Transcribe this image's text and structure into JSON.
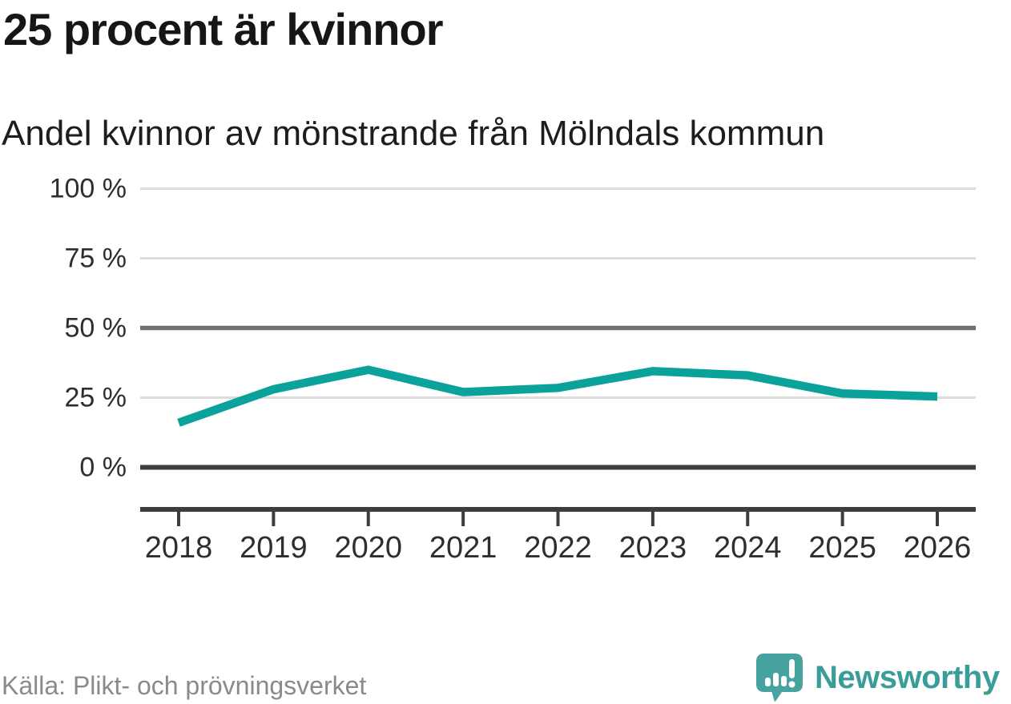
{
  "header": {
    "title": "25 procent är kvinnor",
    "subtitle": "Andel kvinnor av mönstrande från Mölndals kommun"
  },
  "chart_data": {
    "type": "line",
    "title": "25 procent är kvinnor",
    "subtitle": "Andel kvinnor av mönstrande från Mölndals kommun",
    "x": [
      2018,
      2019,
      2020,
      2021,
      2022,
      2023,
      2024,
      2025,
      2026
    ],
    "series": [
      {
        "name": "Andel kvinnor av mönstrande",
        "values": [
          16,
          28,
          35,
          27,
          28.5,
          34.5,
          33,
          26.5,
          25.4
        ]
      }
    ],
    "unit": "%",
    "ylim": [
      0,
      100
    ],
    "yticks": [
      0,
      25,
      50,
      75,
      100
    ],
    "ytick_labels": [
      "0 %",
      "25 %",
      "50 %",
      "75 %",
      "100 %"
    ],
    "emphasized_gridlines": [
      50
    ],
    "baseline_gridline": 0,
    "grid": true,
    "legend": "none",
    "xlabel": "",
    "ylabel": ""
  },
  "footer": {
    "source": "Källa: Plikt- och prövningsverket",
    "brand": "Newsworthy"
  },
  "colors": {
    "line": "#0aa29a",
    "grid_light": "#dcdcdc",
    "grid_mid": "#6f6f73",
    "axis_dark": "#3d3d3d",
    "tick_label": "#2e2e2e",
    "title": "#161616",
    "source_text": "#8a8a8a",
    "brand_teal": "#3a9d99",
    "logo_fill": "#47a39f",
    "logo_glyph": "#ffffff"
  }
}
